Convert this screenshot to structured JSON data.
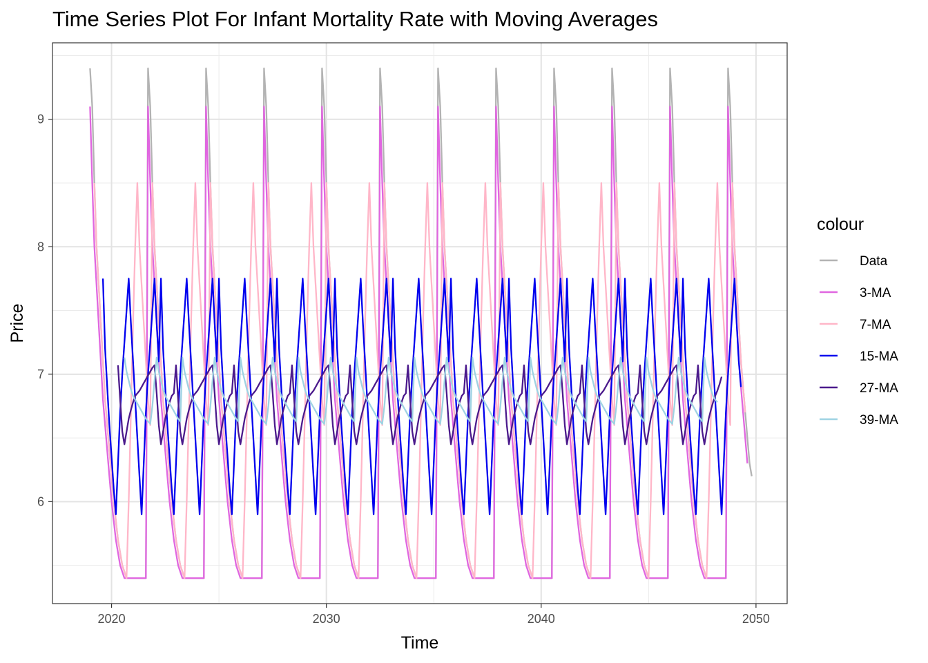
{
  "chart_data": {
    "type": "line",
    "title": "Time Series Plot For Infant Mortality Rate with Moving Averages",
    "xlabel": "Time",
    "ylabel": "Price",
    "xlim": [
      2017.25,
      2051.45
    ],
    "ylim": [
      5.2,
      9.6
    ],
    "x_ticks": [
      2020,
      2030,
      2040,
      2050
    ],
    "y_ticks": [
      6,
      7,
      8,
      9
    ],
    "grid": true,
    "legend": {
      "title": "colour",
      "position": "right",
      "entries": [
        "Data",
        "3-MA",
        "7-MA",
        "15-MA",
        "27-MA",
        "39-MA"
      ]
    },
    "series": [
      {
        "name": "Data",
        "color": "#b3b3b3",
        "start": 2019.0,
        "step": 0.1,
        "cycle_values": [
          9.4,
          9.1,
          8.5,
          8.0,
          7.7,
          7.4,
          7.1,
          6.8,
          6.6,
          6.4,
          6.2,
          6.0,
          5.85,
          5.7,
          5.6,
          5.5,
          5.45,
          5.4,
          5.4,
          5.4,
          5.4,
          5.4,
          5.4,
          5.4,
          5.4,
          5.4,
          5.4
        ],
        "cycles": 11,
        "tail_values": [
          9.4,
          9.1,
          8.5,
          8.0,
          7.7,
          7.4,
          7.1,
          6.9,
          6.7,
          6.5,
          6.3,
          6.2
        ]
      },
      {
        "name": "3-MA",
        "color": "#e066e0",
        "start": 2019.0,
        "step": 0.1,
        "cycle_values": [
          9.1,
          8.5,
          8.0,
          7.7,
          7.4,
          7.1,
          6.8,
          6.6,
          6.4,
          6.2,
          6.0,
          5.85,
          5.7,
          5.6,
          5.5,
          5.45,
          5.4,
          5.4,
          5.4,
          5.4,
          5.4,
          5.4,
          5.4,
          5.4,
          5.4,
          5.4,
          5.4
        ],
        "cycles": 11,
        "tail_values": [
          9.1,
          8.5,
          8.0,
          7.7,
          7.4,
          7.1,
          6.9,
          6.7,
          6.5,
          6.3
        ]
      },
      {
        "name": "7-MA",
        "color": "#ffb6c8",
        "start": 2019.2,
        "step": 0.1,
        "cycle_values": [
          8.5,
          8.0,
          7.7,
          7.4,
          7.1,
          6.8,
          6.6,
          6.4,
          6.2,
          6.0,
          5.85,
          5.7,
          5.6,
          5.5,
          5.45,
          5.4,
          6.0,
          6.7,
          7.4,
          8.0,
          8.5,
          8.0,
          7.7,
          7.4,
          7.1,
          6.8,
          6.6
        ],
        "cycles": 11,
        "tail_values": [
          8.5,
          8.0,
          7.7,
          7.4,
          7.1,
          6.9,
          6.7
        ]
      },
      {
        "name": "15-MA",
        "color": "#0000ee",
        "start": 2019.6,
        "step": 0.1,
        "cycle_values": [
          7.75,
          7.2,
          6.9,
          6.6,
          6.35,
          6.1,
          5.9,
          6.3,
          6.7,
          7.0,
          7.25,
          7.5,
          7.75,
          7.4,
          7.1,
          6.8,
          6.5,
          6.2,
          5.9,
          6.3,
          6.7,
          7.0,
          7.25,
          7.5,
          7.75,
          7.4,
          7.1
        ],
        "cycles": 11,
        "tail_values": [
          6.9
        ]
      },
      {
        "name": "27-MA",
        "color": "#4b1a8c",
        "start": 2020.3,
        "step": 0.1,
        "cycle_values": [
          7.07,
          6.8,
          6.55,
          6.45,
          6.55,
          6.65,
          6.72,
          6.78,
          6.83,
          6.85,
          6.87,
          6.9,
          6.93,
          6.96,
          6.99,
          7.02,
          7.05,
          7.07,
          6.85,
          6.6,
          6.45,
          6.55,
          6.65,
          6.72,
          6.78,
          6.83,
          6.85
        ],
        "cycles": 10,
        "tail_values": [
          7.07,
          6.8,
          6.55,
          6.45,
          6.55,
          6.65,
          6.72,
          6.78,
          6.83,
          6.87,
          6.92,
          6.98
        ]
      },
      {
        "name": "39-MA",
        "color": "#9fd3e3",
        "start": 2020.6,
        "step": 0.1,
        "cycle_values": [
          7.13,
          7.02,
          6.95,
          6.88,
          6.83,
          6.8,
          6.77,
          6.74,
          6.71,
          6.68,
          6.65,
          6.63,
          6.61,
          6.75,
          6.95,
          7.13,
          7.02,
          6.95,
          6.88,
          6.83,
          6.8,
          6.77,
          6.74,
          6.71,
          6.68,
          6.65,
          6.63
        ],
        "cycles": 10,
        "tail_values": [
          7.13,
          7.02,
          6.95,
          6.88,
          6.83,
          6.8,
          6.78
        ]
      }
    ]
  }
}
